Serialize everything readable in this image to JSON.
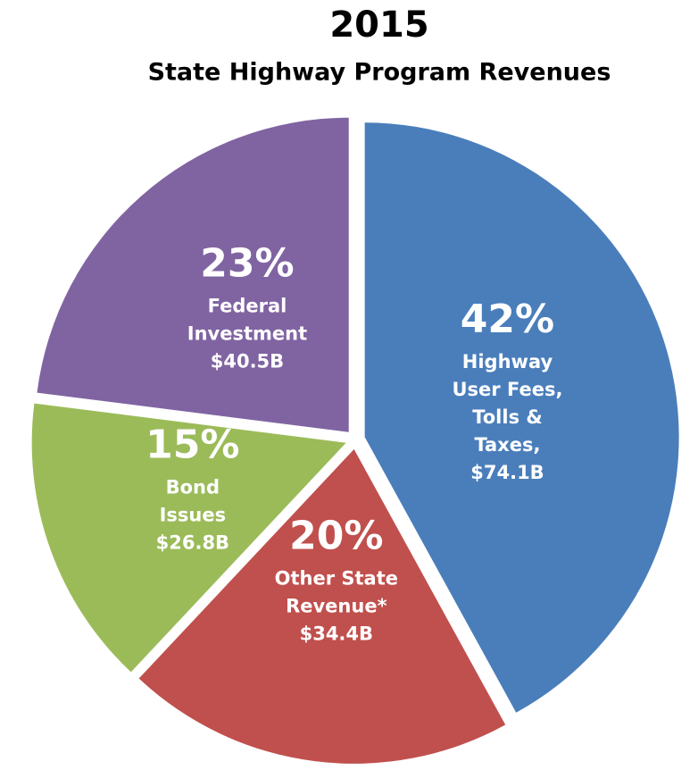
{
  "chart_data": {
    "type": "pie",
    "title": "2015",
    "subtitle": "State Highway Program Revenues",
    "categories": [
      "Highway User Fees, Tolls & Taxes,",
      "Other State Revenue*",
      "Bond Issues",
      "Federal Investment"
    ],
    "values": [
      42,
      20,
      15,
      23
    ],
    "value_labels": [
      "42%",
      "20%",
      "15%",
      "23%"
    ],
    "amounts": [
      74.1,
      34.4,
      26.8,
      40.5
    ],
    "amount_labels": [
      "$74.1B",
      "$34.4B",
      "$26.8B",
      "$40.5B"
    ],
    "colors": [
      "#4a7ebb",
      "#c0504d",
      "#9bbb59",
      "#8064a2"
    ]
  }
}
